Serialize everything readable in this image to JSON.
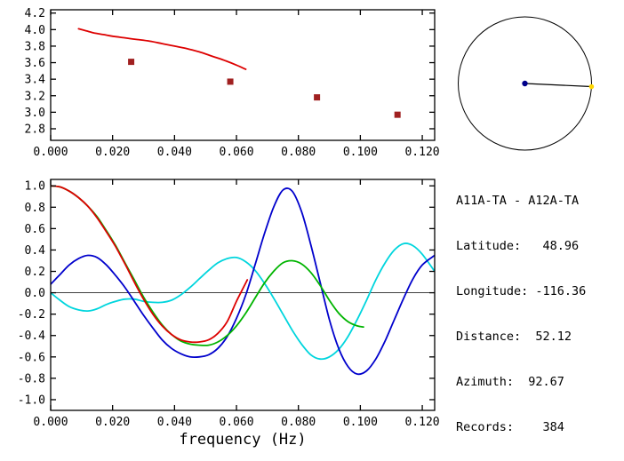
{
  "info": {
    "title": "A11A-TA - A12A-TA",
    "lines": [
      "Latitude:   48.96",
      "Longitude: -116.36",
      "Distance:  52.12",
      "Azimuth:  92.67",
      "Records:    384"
    ],
    "station_a": "A11A-TA",
    "station_b": "A12A-TA",
    "latitude": 48.96,
    "longitude": -116.36,
    "distance": 52.12,
    "azimuth": 92.67,
    "records": 384
  },
  "chart_data": [
    {
      "type": "line",
      "name": "dispersion-panel",
      "xlabel": "",
      "xlim": [
        0,
        0.124
      ],
      "ylim": [
        2.66,
        4.24
      ],
      "xticks": [
        0,
        0.02,
        0.04,
        0.06,
        0.08,
        0.1,
        0.12
      ],
      "xtick_labels": [
        "0.000",
        "0.020",
        "0.040",
        "0.060",
        "0.080",
        "0.100",
        "0.120"
      ],
      "yticks": [
        4.2,
        4.0,
        3.8,
        3.6,
        3.4,
        3.2,
        3.0,
        2.8
      ],
      "ytick_labels": [
        "4.2",
        "4.0",
        "3.8",
        "3.6",
        "3.4",
        "3.2",
        "3.0",
        "2.8"
      ],
      "series": [
        {
          "name": "dispersion-curve-red",
          "color": "#dd0000",
          "points": [
            [
              0.009,
              4.01
            ],
            [
              0.011,
              3.99
            ],
            [
              0.014,
              3.96
            ],
            [
              0.017,
              3.94
            ],
            [
              0.02,
              3.92
            ],
            [
              0.024,
              3.9
            ],
            [
              0.028,
              3.88
            ],
            [
              0.032,
              3.86
            ],
            [
              0.036,
              3.83
            ],
            [
              0.04,
              3.8
            ],
            [
              0.044,
              3.77
            ],
            [
              0.048,
              3.73
            ],
            [
              0.052,
              3.68
            ],
            [
              0.056,
              3.63
            ],
            [
              0.06,
              3.57
            ],
            [
              0.063,
              3.52
            ]
          ]
        }
      ],
      "markers": {
        "name": "velocity-pick-square",
        "shape": "square",
        "size": 7,
        "color": "#a02020",
        "points": [
          [
            0.026,
            3.61
          ],
          [
            0.058,
            3.37
          ],
          [
            0.086,
            3.18
          ],
          [
            0.112,
            2.97
          ]
        ]
      }
    },
    {
      "type": "line",
      "name": "correlation-panel",
      "xlabel": "frequency (Hz)",
      "xlim": [
        0,
        0.124
      ],
      "ylim": [
        -1.1,
        1.06
      ],
      "zero_line": true,
      "xticks": [
        0,
        0.02,
        0.04,
        0.06,
        0.08,
        0.1,
        0.12
      ],
      "xtick_labels": [
        "0.000",
        "0.020",
        "0.040",
        "0.060",
        "0.080",
        "0.100",
        "0.120"
      ],
      "yticks": [
        1.0,
        0.8,
        0.6,
        0.4,
        0.2,
        0.0,
        -0.2,
        -0.4,
        -0.6,
        -0.8,
        -1.0
      ],
      "ytick_labels": [
        "1.0",
        "0.8",
        "0.6",
        "0.4",
        "0.2",
        "0.0",
        "-0.2",
        "-0.4",
        "-0.6",
        "-0.8",
        "-1.0"
      ],
      "series": [
        {
          "name": "curve-cyan",
          "color": "#00d5dd",
          "points": [
            [
              0,
              0
            ],
            [
              0.003,
              -0.07
            ],
            [
              0.006,
              -0.13
            ],
            [
              0.009,
              -0.16
            ],
            [
              0.012,
              -0.17
            ],
            [
              0.015,
              -0.15
            ],
            [
              0.018,
              -0.11
            ],
            [
              0.021,
              -0.08
            ],
            [
              0.024,
              -0.06
            ],
            [
              0.027,
              -0.06
            ],
            [
              0.03,
              -0.08
            ],
            [
              0.033,
              -0.09
            ],
            [
              0.036,
              -0.09
            ],
            [
              0.039,
              -0.07
            ],
            [
              0.042,
              -0.02
            ],
            [
              0.045,
              0.05
            ],
            [
              0.048,
              0.13
            ],
            [
              0.051,
              0.21
            ],
            [
              0.054,
              0.28
            ],
            [
              0.057,
              0.32
            ],
            [
              0.06,
              0.33
            ],
            [
              0.063,
              0.29
            ],
            [
              0.066,
              0.21
            ],
            [
              0.069,
              0.09
            ],
            [
              0.072,
              -0.05
            ],
            [
              0.075,
              -0.2
            ],
            [
              0.078,
              -0.35
            ],
            [
              0.081,
              -0.48
            ],
            [
              0.084,
              -0.58
            ],
            [
              0.087,
              -0.62
            ],
            [
              0.09,
              -0.6
            ],
            [
              0.093,
              -0.53
            ],
            [
              0.096,
              -0.41
            ],
            [
              0.099,
              -0.25
            ],
            [
              0.102,
              -0.07
            ],
            [
              0.105,
              0.12
            ],
            [
              0.108,
              0.28
            ],
            [
              0.111,
              0.4
            ],
            [
              0.114,
              0.46
            ],
            [
              0.117,
              0.44
            ],
            [
              0.12,
              0.36
            ],
            [
              0.124,
              0.2
            ]
          ]
        },
        {
          "name": "curve-blue",
          "color": "#0000cc",
          "points": [
            [
              0,
              0.08
            ],
            [
              0.003,
              0.17
            ],
            [
              0.006,
              0.26
            ],
            [
              0.009,
              0.32
            ],
            [
              0.012,
              0.35
            ],
            [
              0.015,
              0.33
            ],
            [
              0.018,
              0.26
            ],
            [
              0.021,
              0.16
            ],
            [
              0.024,
              0.05
            ],
            [
              0.027,
              -0.08
            ],
            [
              0.03,
              -0.21
            ],
            [
              0.033,
              -0.33
            ],
            [
              0.036,
              -0.44
            ],
            [
              0.039,
              -0.52
            ],
            [
              0.042,
              -0.57
            ],
            [
              0.045,
              -0.6
            ],
            [
              0.048,
              -0.6
            ],
            [
              0.051,
              -0.58
            ],
            [
              0.054,
              -0.52
            ],
            [
              0.057,
              -0.41
            ],
            [
              0.06,
              -0.24
            ],
            [
              0.063,
              -0.02
            ],
            [
              0.066,
              0.26
            ],
            [
              0.069,
              0.55
            ],
            [
              0.072,
              0.8
            ],
            [
              0.075,
              0.96
            ],
            [
              0.078,
              0.95
            ],
            [
              0.081,
              0.76
            ],
            [
              0.084,
              0.45
            ],
            [
              0.087,
              0.1
            ],
            [
              0.09,
              -0.25
            ],
            [
              0.093,
              -0.52
            ],
            [
              0.096,
              -0.69
            ],
            [
              0.099,
              -0.76
            ],
            [
              0.102,
              -0.73
            ],
            [
              0.105,
              -0.62
            ],
            [
              0.108,
              -0.45
            ],
            [
              0.111,
              -0.25
            ],
            [
              0.114,
              -0.05
            ],
            [
              0.117,
              0.13
            ],
            [
              0.12,
              0.26
            ],
            [
              0.124,
              0.35
            ]
          ]
        },
        {
          "name": "curve-green",
          "color": "#00b400",
          "points": [
            [
              0,
              1
            ],
            [
              0.003,
              0.99
            ],
            [
              0.006,
              0.95
            ],
            [
              0.009,
              0.89
            ],
            [
              0.012,
              0.81
            ],
            [
              0.015,
              0.71
            ],
            [
              0.018,
              0.58
            ],
            [
              0.021,
              0.44
            ],
            [
              0.024,
              0.28
            ],
            [
              0.027,
              0.12
            ],
            [
              0.03,
              -0.04
            ],
            [
              0.033,
              -0.18
            ],
            [
              0.036,
              -0.3
            ],
            [
              0.039,
              -0.39
            ],
            [
              0.042,
              -0.45
            ],
            [
              0.045,
              -0.48
            ],
            [
              0.048,
              -0.49
            ],
            [
              0.051,
              -0.49
            ],
            [
              0.054,
              -0.46
            ],
            [
              0.057,
              -0.4
            ],
            [
              0.06,
              -0.31
            ],
            [
              0.063,
              -0.19
            ],
            [
              0.066,
              -0.05
            ],
            [
              0.069,
              0.09
            ],
            [
              0.072,
              0.2
            ],
            [
              0.075,
              0.28
            ],
            [
              0.078,
              0.3
            ],
            [
              0.081,
              0.27
            ],
            [
              0.084,
              0.19
            ],
            [
              0.087,
              0.07
            ],
            [
              0.09,
              -0.07
            ],
            [
              0.093,
              -0.19
            ],
            [
              0.096,
              -0.27
            ],
            [
              0.099,
              -0.31
            ],
            [
              0.101,
              -0.32
            ]
          ]
        },
        {
          "name": "curve-red",
          "color": "#dd0000",
          "points": [
            [
              0,
              1
            ],
            [
              0.003,
              0.99
            ],
            [
              0.006,
              0.95
            ],
            [
              0.009,
              0.89
            ],
            [
              0.012,
              0.81
            ],
            [
              0.015,
              0.7
            ],
            [
              0.018,
              0.57
            ],
            [
              0.021,
              0.43
            ],
            [
              0.024,
              0.27
            ],
            [
              0.027,
              0.1
            ],
            [
              0.03,
              -0.06
            ],
            [
              0.033,
              -0.2
            ],
            [
              0.036,
              -0.31
            ],
            [
              0.039,
              -0.39
            ],
            [
              0.042,
              -0.44
            ],
            [
              0.045,
              -0.46
            ],
            [
              0.048,
              -0.46
            ],
            [
              0.051,
              -0.44
            ],
            [
              0.054,
              -0.38
            ],
            [
              0.057,
              -0.27
            ],
            [
              0.06,
              -0.08
            ],
            [
              0.0635,
              0.12
            ]
          ]
        }
      ]
    },
    {
      "type": "other",
      "name": "azimuth-indicator",
      "azimuth_deg": 92.67,
      "circle_color": "#000000",
      "ray_color": "#000000",
      "center_dot_color": "#00008b",
      "end_dot_color": "#ffd700"
    }
  ]
}
